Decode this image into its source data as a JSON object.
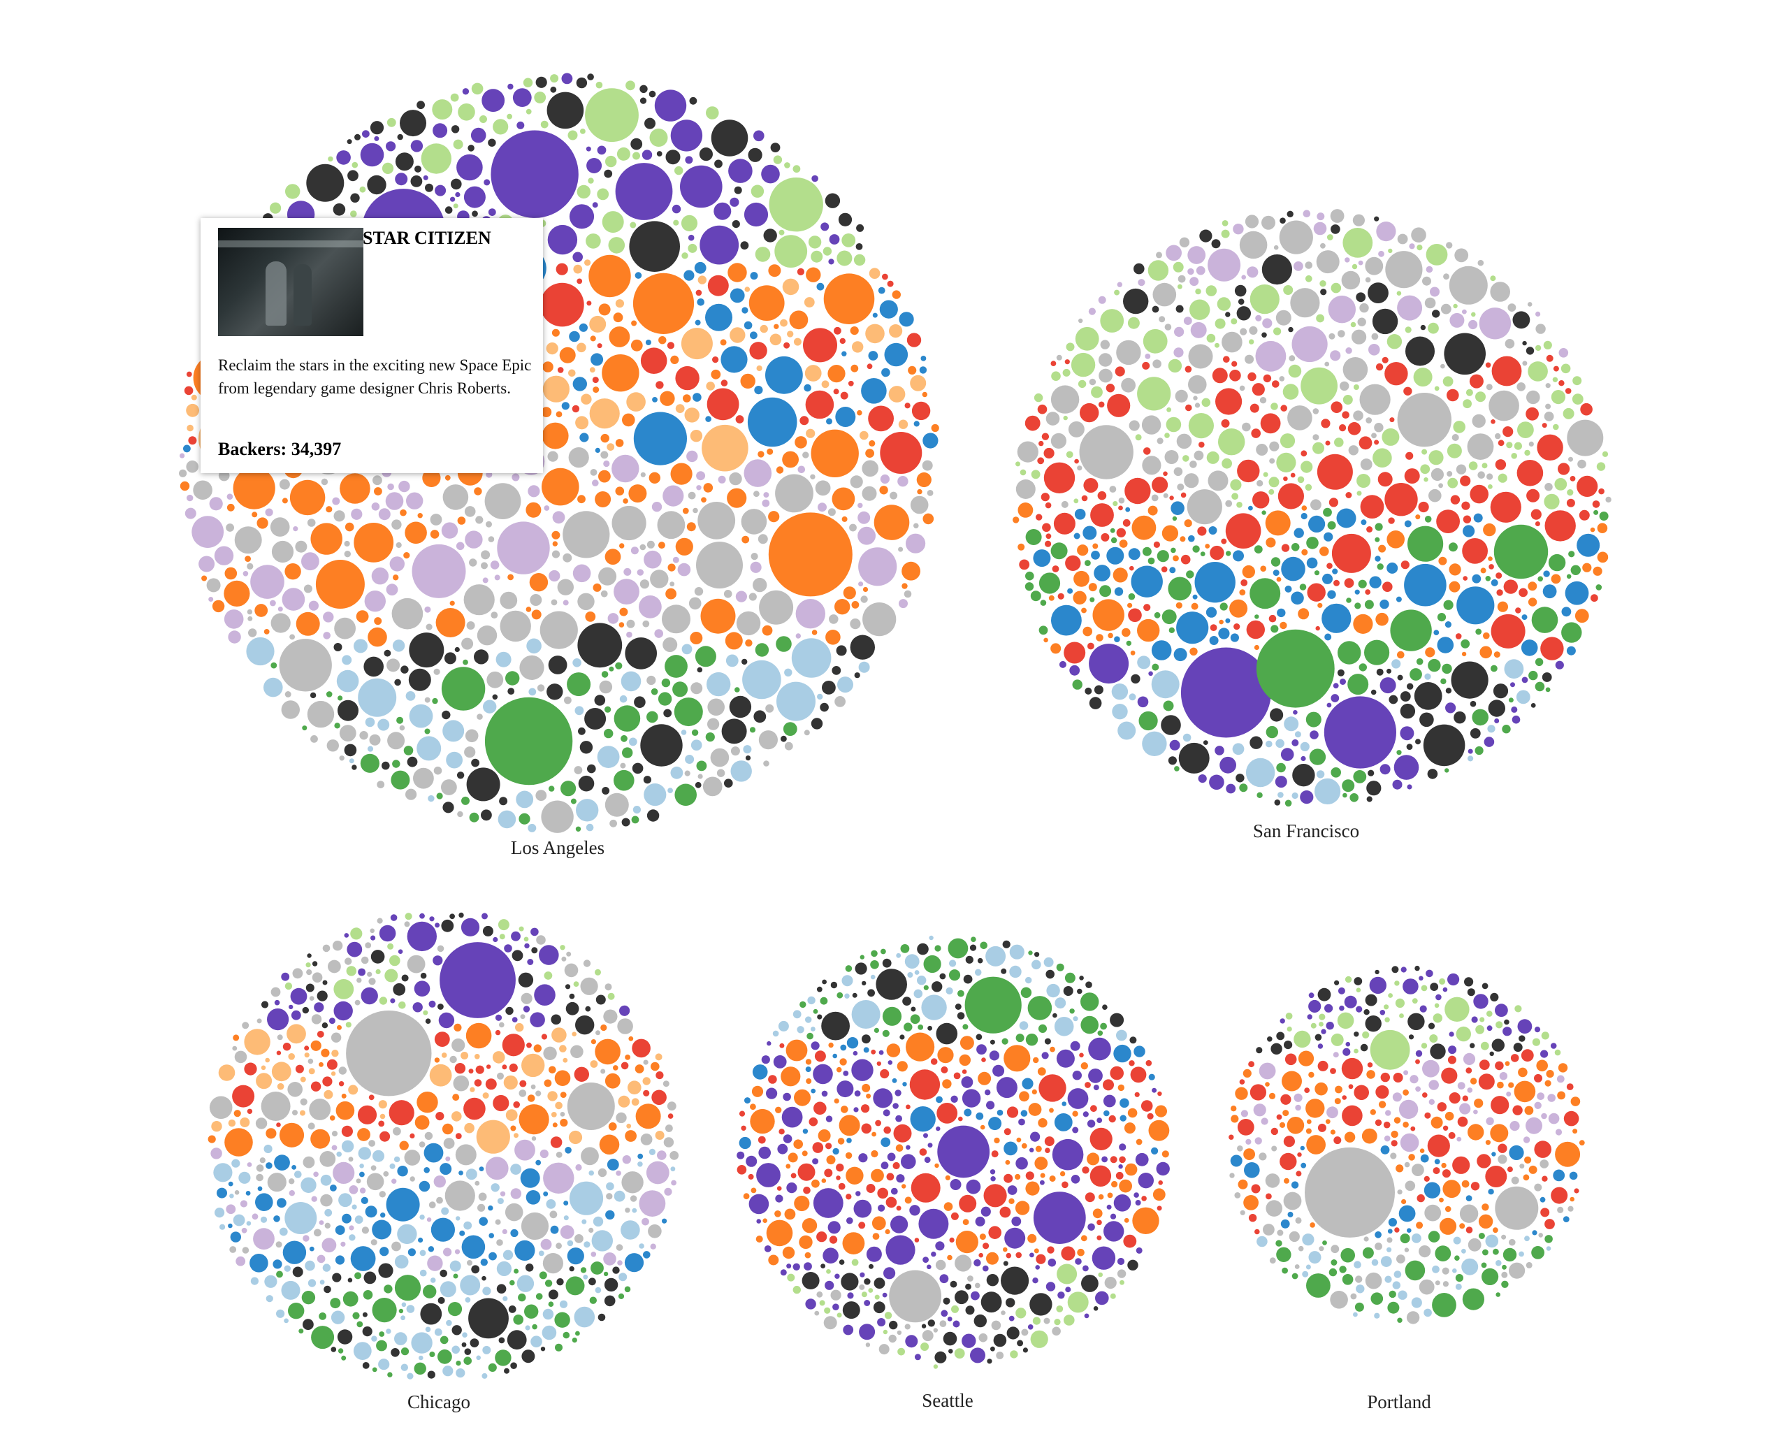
{
  "chart_data": {
    "type": "packed-bubble",
    "clusters": [
      {
        "id": "la",
        "name": "Los Angeles",
        "relative_size": 1.0,
        "bands": [
          [
            "purple",
            "lightgreen",
            "black"
          ],
          [
            "orange",
            "lightorange",
            "red",
            "blue"
          ],
          [
            "orange",
            "lightpurple",
            "grey"
          ],
          [
            "lightblue",
            "grey",
            "green",
            "black"
          ]
        ],
        "big_bubbles": [
          {
            "color": "purple",
            "r": 0.115,
            "angle": -95,
            "dist": 0.83
          },
          {
            "color": "purple",
            "r": 0.11,
            "angle": -125,
            "dist": 0.8
          },
          {
            "color": "purple",
            "r": 0.075,
            "angle": -72,
            "dist": 0.78
          },
          {
            "color": "orange",
            "r": 0.11,
            "angle": 22,
            "dist": 0.8
          },
          {
            "color": "green",
            "r": 0.115,
            "angle": 96,
            "dist": 0.86
          },
          {
            "color": "orange",
            "r": 0.08,
            "angle": -55,
            "dist": 0.52
          },
          {
            "color": "red",
            "r": 0.055,
            "angle": 0,
            "dist": 0.95
          }
        ]
      },
      {
        "id": "sf",
        "name": "San Francisco",
        "relative_size": 0.79,
        "bands": [
          [
            "lightgreen",
            "lightpurple",
            "grey",
            "black"
          ],
          [
            "grey",
            "red",
            "lightgreen"
          ],
          [
            "green",
            "orange",
            "red",
            "blue"
          ],
          [
            "green",
            "purple",
            "black",
            "lightblue"
          ]
        ],
        "big_bubbles": [
          {
            "color": "purple",
            "r": 0.15,
            "angle": 115,
            "dist": 0.8
          },
          {
            "color": "purple",
            "r": 0.12,
            "angle": 78,
            "dist": 0.87
          },
          {
            "color": "green",
            "r": 0.13,
            "angle": 96,
            "dist": 0.62
          },
          {
            "color": "grey",
            "r": 0.09,
            "angle": -38,
            "dist": 0.52
          },
          {
            "color": "green",
            "r": 0.09,
            "angle": 12,
            "dist": 0.78
          },
          {
            "color": "grey",
            "r": 0.09,
            "angle": -165,
            "dist": 0.78
          }
        ]
      },
      {
        "id": "chi",
        "name": "Chicago",
        "relative_size": 0.62,
        "bands": [
          [
            "purple",
            "grey",
            "black",
            "lightgreen"
          ],
          [
            "grey",
            "orange",
            "red",
            "lightorange"
          ],
          [
            "grey",
            "lightpurple",
            "blue",
            "lightblue"
          ],
          [
            "lightblue",
            "green",
            "black"
          ]
        ],
        "big_bubbles": [
          {
            "color": "purple",
            "r": 0.16,
            "angle": -78,
            "dist": 0.85
          },
          {
            "color": "grey",
            "r": 0.18,
            "angle": -120,
            "dist": 0.55
          },
          {
            "color": "black",
            "r": 0.085,
            "angle": 75,
            "dist": 0.82
          },
          {
            "color": "grey",
            "r": 0.1,
            "angle": -15,
            "dist": 0.72
          }
        ]
      },
      {
        "id": "sea",
        "name": "Seattle",
        "relative_size": 0.57,
        "bands": [
          [
            "green",
            "lightblue",
            "black"
          ],
          [
            "red",
            "orange",
            "purple",
            "blue"
          ],
          [
            "purple",
            "orange",
            "red"
          ],
          [
            "grey",
            "purple",
            "black",
            "lightgreen"
          ]
        ],
        "big_bubbles": [
          {
            "color": "green",
            "r": 0.13,
            "angle": -75,
            "dist": 0.8
          },
          {
            "color": "purple",
            "r": 0.12,
            "angle": 32,
            "dist": 0.65
          },
          {
            "color": "grey",
            "r": 0.12,
            "angle": 105,
            "dist": 0.78
          },
          {
            "color": "purple",
            "r": 0.12,
            "angle": 0,
            "dist": 0.05
          }
        ]
      },
      {
        "id": "por",
        "name": "Portland",
        "relative_size": 0.5,
        "bands": [
          [
            "black",
            "purple",
            "lightgreen"
          ],
          [
            "lightpurple",
            "red",
            "orange"
          ],
          [
            "red",
            "grey",
            "orange",
            "blue"
          ],
          [
            "grey",
            "lightblue",
            "green"
          ]
        ],
        "big_bubbles": [
          {
            "color": "grey",
            "r": 0.25,
            "angle": 140,
            "dist": 0.55
          },
          {
            "color": "lightgreen",
            "r": 0.11,
            "angle": -100,
            "dist": 0.6
          },
          {
            "color": "grey",
            "r": 0.12,
            "angle": 30,
            "dist": 0.8
          }
        ]
      }
    ]
  },
  "colors": {
    "purple": "#6643b8",
    "orange": "#fd7f23",
    "green": "#4fa94c",
    "grey": "#bdbdbd",
    "black": "#333333",
    "red": "#ea4335",
    "lightgreen": "#b3de8c",
    "lightpurple": "#cab3da",
    "lightblue": "#a9cde4",
    "blue": "#2b87cc",
    "lightorange": "#fdbb76"
  },
  "tooltip": {
    "title": "STAR CITIZEN",
    "description": "Reclaim the stars in the exciting new Space Epic from legendary game designer Chris Roberts.",
    "backers": "Backers: 34,397"
  }
}
